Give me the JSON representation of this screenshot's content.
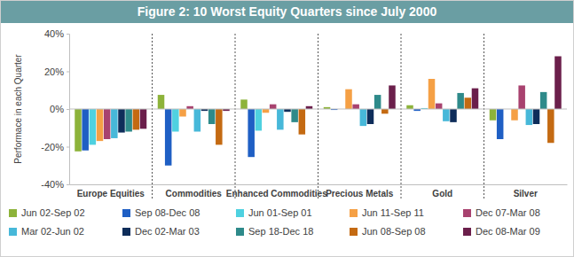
{
  "chart_data": {
    "type": "bar",
    "title": "Figure 2: 10 Worst Equity Quarters since July 2000",
    "y_label": "Performace in each Quarter",
    "categories": [
      "Europe Equities",
      "Commodities",
      "Enhanced Commodities",
      "Precious Metals",
      "Gold",
      "Silver"
    ],
    "ylim": [
      -40,
      40
    ],
    "yticks": [
      {
        "value": -40,
        "label": "-40%"
      },
      {
        "value": -20,
        "label": "-20%"
      },
      {
        "value": 0,
        "label": "0%"
      },
      {
        "value": 20,
        "label": "20%"
      },
      {
        "value": 40,
        "label": "40%"
      }
    ],
    "grid": false,
    "legend": "bottom",
    "series": [
      {
        "name": "Jun 02-Sep 02",
        "color": "#8db33a",
        "values": [
          -22.5,
          7.5,
          5,
          1,
          2,
          -6
        ]
      },
      {
        "name": "Sep 08-Dec 08",
        "color": "#1f5fc4",
        "values": [
          -22,
          -30,
          -25.5,
          -0.5,
          -1,
          -16
        ]
      },
      {
        "name": "Jun 01-Sep 01",
        "color": "#4fd1e0",
        "values": [
          -19,
          -12,
          -11.5,
          0,
          0.5,
          0
        ]
      },
      {
        "name": "Jun 11-Sep 11",
        "color": "#f5a045",
        "values": [
          -17,
          -4,
          -2,
          10.5,
          16,
          -6
        ]
      },
      {
        "name": "Dec 07-Mar 08",
        "color": "#a8426f",
        "values": [
          -16,
          1.5,
          2.5,
          2.5,
          3,
          12.5
        ]
      },
      {
        "name": "Mar 02-Jun 02",
        "color": "#47b8d9",
        "values": [
          -15.5,
          -12,
          -11,
          -9,
          -6.5,
          -8.5
        ]
      },
      {
        "name": "Dec 02-Mar 03",
        "color": "#0e2d5a",
        "values": [
          -12.5,
          -1,
          -1.5,
          -8,
          -7,
          -8
        ]
      },
      {
        "name": "Sep 18-Dec 18",
        "color": "#2e8a8a",
        "values": [
          -12,
          -8,
          -7,
          7.5,
          8.5,
          9
        ]
      },
      {
        "name": "Jun 08-Sep 08",
        "color": "#c46a12",
        "values": [
          -11,
          -19,
          -13.5,
          -2.5,
          6,
          -18
        ]
      },
      {
        "name": "Dec 08-Mar 09",
        "color": "#6b1f4b",
        "values": [
          -10.5,
          -1,
          1.5,
          12.5,
          11,
          28
        ]
      }
    ]
  }
}
